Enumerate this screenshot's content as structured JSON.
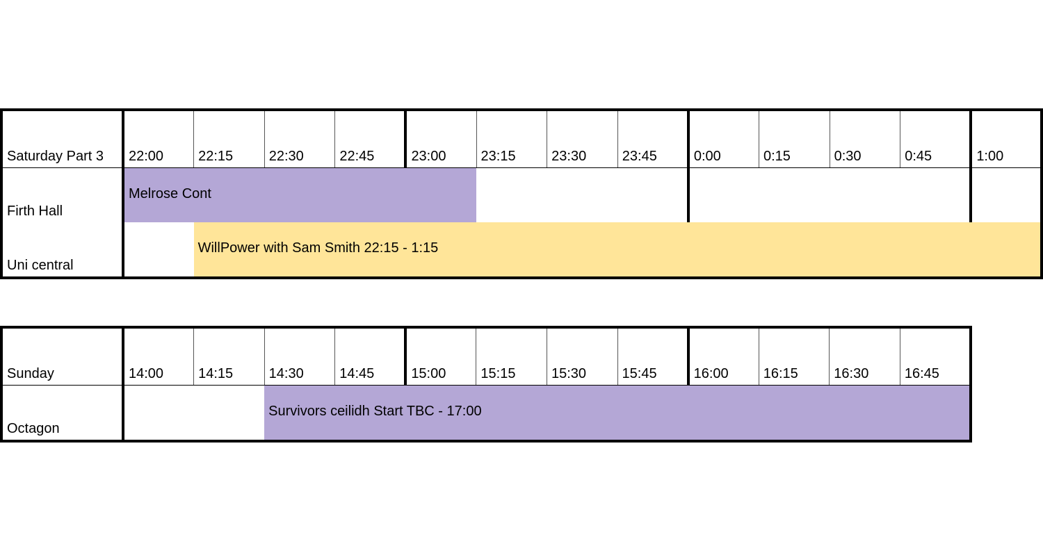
{
  "schedules": [
    {
      "heading": "Saturday Part 3",
      "times": [
        "22:00",
        "22:15",
        "22:30",
        "22:45",
        "23:00",
        "23:15",
        "23:30",
        "23:45",
        "0:00",
        "0:15",
        "0:30",
        "0:45",
        "1:00"
      ],
      "rows": [
        {
          "venue": "Firth Hall",
          "event": "Melrose Cont"
        },
        {
          "venue": "Uni central",
          "event": "WillPower with Sam Smith 22:15 - 1:15"
        }
      ]
    },
    {
      "heading": "Sunday",
      "times": [
        "14:00",
        "14:15",
        "14:30",
        "14:45",
        "15:00",
        "15:15",
        "15:30",
        "15:45",
        "16:00",
        "16:15",
        "16:30",
        "16:45"
      ],
      "rows": [
        {
          "venue": "Octagon",
          "event": "Survivors ceilidh Start TBC - 17:00"
        }
      ]
    }
  ]
}
